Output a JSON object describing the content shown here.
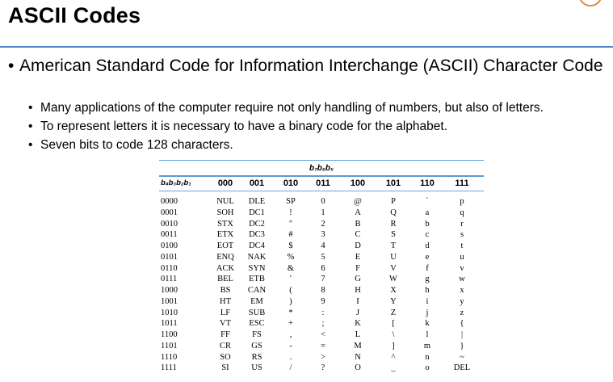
{
  "title": "ASCII Codes",
  "bullets": [
    {
      "text": "American Standard Code for Information Interchange (ASCII) Character Code",
      "subs": [
        "Many applications of the computer require not only handling of numbers, but also of letters.",
        "To represent letters it is necessary to have a binary code for the alphabet.",
        "Seven bits to code 128 characters."
      ]
    }
  ],
  "table": {
    "group_label": "b₇b₆b₅",
    "row_header": "b₄b₃b₂b₁",
    "col_headers": [
      "000",
      "001",
      "010",
      "011",
      "100",
      "101",
      "110",
      "111"
    ],
    "rows": [
      {
        "code": "0000",
        "cells": [
          "NUL",
          "DLE",
          "SP",
          "0",
          "@",
          "P",
          "`",
          "p"
        ]
      },
      {
        "code": "0001",
        "cells": [
          "SOH",
          "DC1",
          "!",
          "1",
          "A",
          "Q",
          "a",
          "q"
        ]
      },
      {
        "code": "0010",
        "cells": [
          "STX",
          "DC2",
          "\"",
          "2",
          "B",
          "R",
          "b",
          "r"
        ]
      },
      {
        "code": "0011",
        "cells": [
          "ETX",
          "DC3",
          "#",
          "3",
          "C",
          "S",
          "c",
          "s"
        ]
      },
      {
        "code": "0100",
        "cells": [
          "EOT",
          "DC4",
          "$",
          "4",
          "D",
          "T",
          "d",
          "t"
        ]
      },
      {
        "code": "0101",
        "cells": [
          "ENQ",
          "NAK",
          "%",
          "5",
          "E",
          "U",
          "e",
          "u"
        ]
      },
      {
        "code": "0110",
        "cells": [
          "ACK",
          "SYN",
          "&",
          "6",
          "F",
          "V",
          "f",
          "v"
        ]
      },
      {
        "code": "0111",
        "cells": [
          "BEL",
          "ETB",
          "'",
          "7",
          "G",
          "W",
          "g",
          "w"
        ]
      },
      {
        "code": "1000",
        "cells": [
          "BS",
          "CAN",
          "(",
          "8",
          "H",
          "X",
          "h",
          "x"
        ]
      },
      {
        "code": "1001",
        "cells": [
          "HT",
          "EM",
          ")",
          "9",
          "I",
          "Y",
          "i",
          "y"
        ]
      },
      {
        "code": "1010",
        "cells": [
          "LF",
          "SUB",
          "*",
          ":",
          "J",
          "Z",
          "j",
          "z"
        ]
      },
      {
        "code": "1011",
        "cells": [
          "VT",
          "ESC",
          "+",
          ";",
          "K",
          "[",
          "k",
          "{"
        ]
      },
      {
        "code": "1100",
        "cells": [
          "FF",
          "FS",
          ",",
          "<",
          "L",
          "\\",
          "l",
          "|"
        ]
      },
      {
        "code": "1101",
        "cells": [
          "CR",
          "GS",
          "-",
          "=",
          "M",
          "]",
          "m",
          "}"
        ]
      },
      {
        "code": "1110",
        "cells": [
          "SO",
          "RS",
          ".",
          ">",
          "N",
          "^",
          "n",
          "~"
        ]
      },
      {
        "code": "1111",
        "cells": [
          "SI",
          "US",
          "/",
          "?",
          "O",
          "_",
          "o",
          "DEL"
        ]
      }
    ]
  }
}
